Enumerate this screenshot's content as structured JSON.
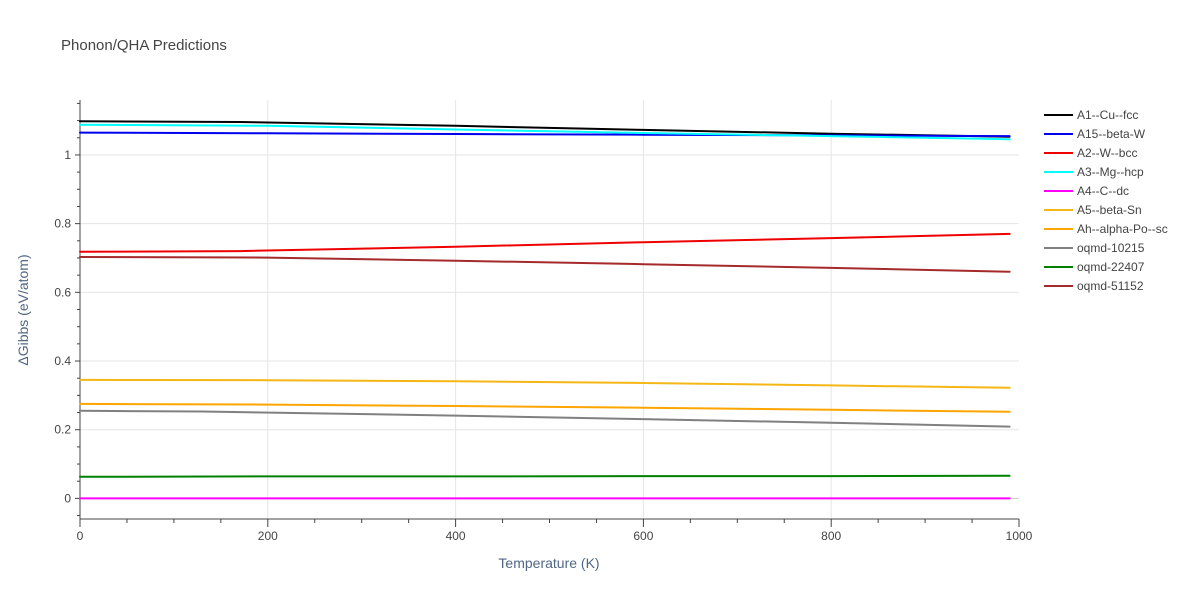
{
  "chart_data": {
    "type": "line",
    "title": "Phonon/QHA Predictions",
    "xlabel": "Temperature (K)",
    "ylabel": "ΔGibbs (eV/atom)",
    "xlim": [
      0,
      1000
    ],
    "ylim": [
      -0.06,
      1.16
    ],
    "xticks": [
      0,
      200,
      400,
      600,
      800,
      1000
    ],
    "yticks": [
      0,
      0.2,
      0.4,
      0.6,
      0.8,
      1
    ],
    "xtick_labels": [
      "0",
      "200",
      "400",
      "600",
      "800",
      "1000"
    ],
    "ytick_labels": [
      "0",
      "0.2",
      "0.4",
      "0.6",
      "0.8",
      "1"
    ],
    "grid": true,
    "legend_position": "right",
    "series": [
      {
        "name": "A1--Cu--fcc",
        "color": "#000000",
        "x": [
          0,
          170,
          400,
          600,
          800,
          990
        ],
        "values": [
          1.098,
          1.096,
          1.085,
          1.073,
          1.062,
          1.053
        ]
      },
      {
        "name": "A15--beta-W",
        "color": "#0000ee",
        "x": [
          0,
          200,
          400,
          600,
          800,
          990
        ],
        "values": [
          1.065,
          1.063,
          1.061,
          1.059,
          1.057,
          1.055
        ]
      },
      {
        "name": "A2--W--bcc",
        "color": "#ee0000",
        "x": [
          0,
          170,
          400,
          600,
          800,
          990
        ],
        "values": [
          0.718,
          0.72,
          0.733,
          0.746,
          0.758,
          0.77
        ]
      },
      {
        "name": "A3--Mg--hcp",
        "color": "#00ffff",
        "x": [
          0,
          200,
          400,
          600,
          800,
          990
        ],
        "values": [
          1.088,
          1.085,
          1.074,
          1.064,
          1.055,
          1.046
        ]
      },
      {
        "name": "A4--C--dc",
        "color": "#ff00ff",
        "x": [
          0,
          200,
          400,
          600,
          800,
          990
        ],
        "values": [
          0.0,
          0.0,
          0.0,
          0.0,
          0.0,
          0.0
        ]
      },
      {
        "name": "A5--beta-Sn",
        "color": "#f5b716",
        "x": [
          0,
          200,
          400,
          600,
          800,
          990
        ],
        "values": [
          0.345,
          0.344,
          0.341,
          0.336,
          0.329,
          0.322
        ]
      },
      {
        "name": "Ah--alpha-Po--sc",
        "color": "#ffa500",
        "x": [
          0,
          200,
          400,
          600,
          800,
          990
        ],
        "values": [
          0.275,
          0.273,
          0.269,
          0.264,
          0.258,
          0.252
        ]
      },
      {
        "name": "oqmd-10215",
        "color": "#808080",
        "x": [
          0,
          130,
          400,
          600,
          800,
          990
        ],
        "values": [
          0.255,
          0.253,
          0.241,
          0.231,
          0.22,
          0.209
        ]
      },
      {
        "name": "oqmd-22407",
        "color": "#008000",
        "x": [
          0,
          200,
          400,
          600,
          800,
          990
        ],
        "values": [
          0.063,
          0.064,
          0.064,
          0.065,
          0.065,
          0.066
        ]
      },
      {
        "name": "oqmd-51152",
        "color": "#a52a2a",
        "x": [
          0,
          200,
          400,
          600,
          800,
          990
        ],
        "values": [
          0.703,
          0.701,
          0.692,
          0.682,
          0.671,
          0.66
        ]
      }
    ]
  }
}
